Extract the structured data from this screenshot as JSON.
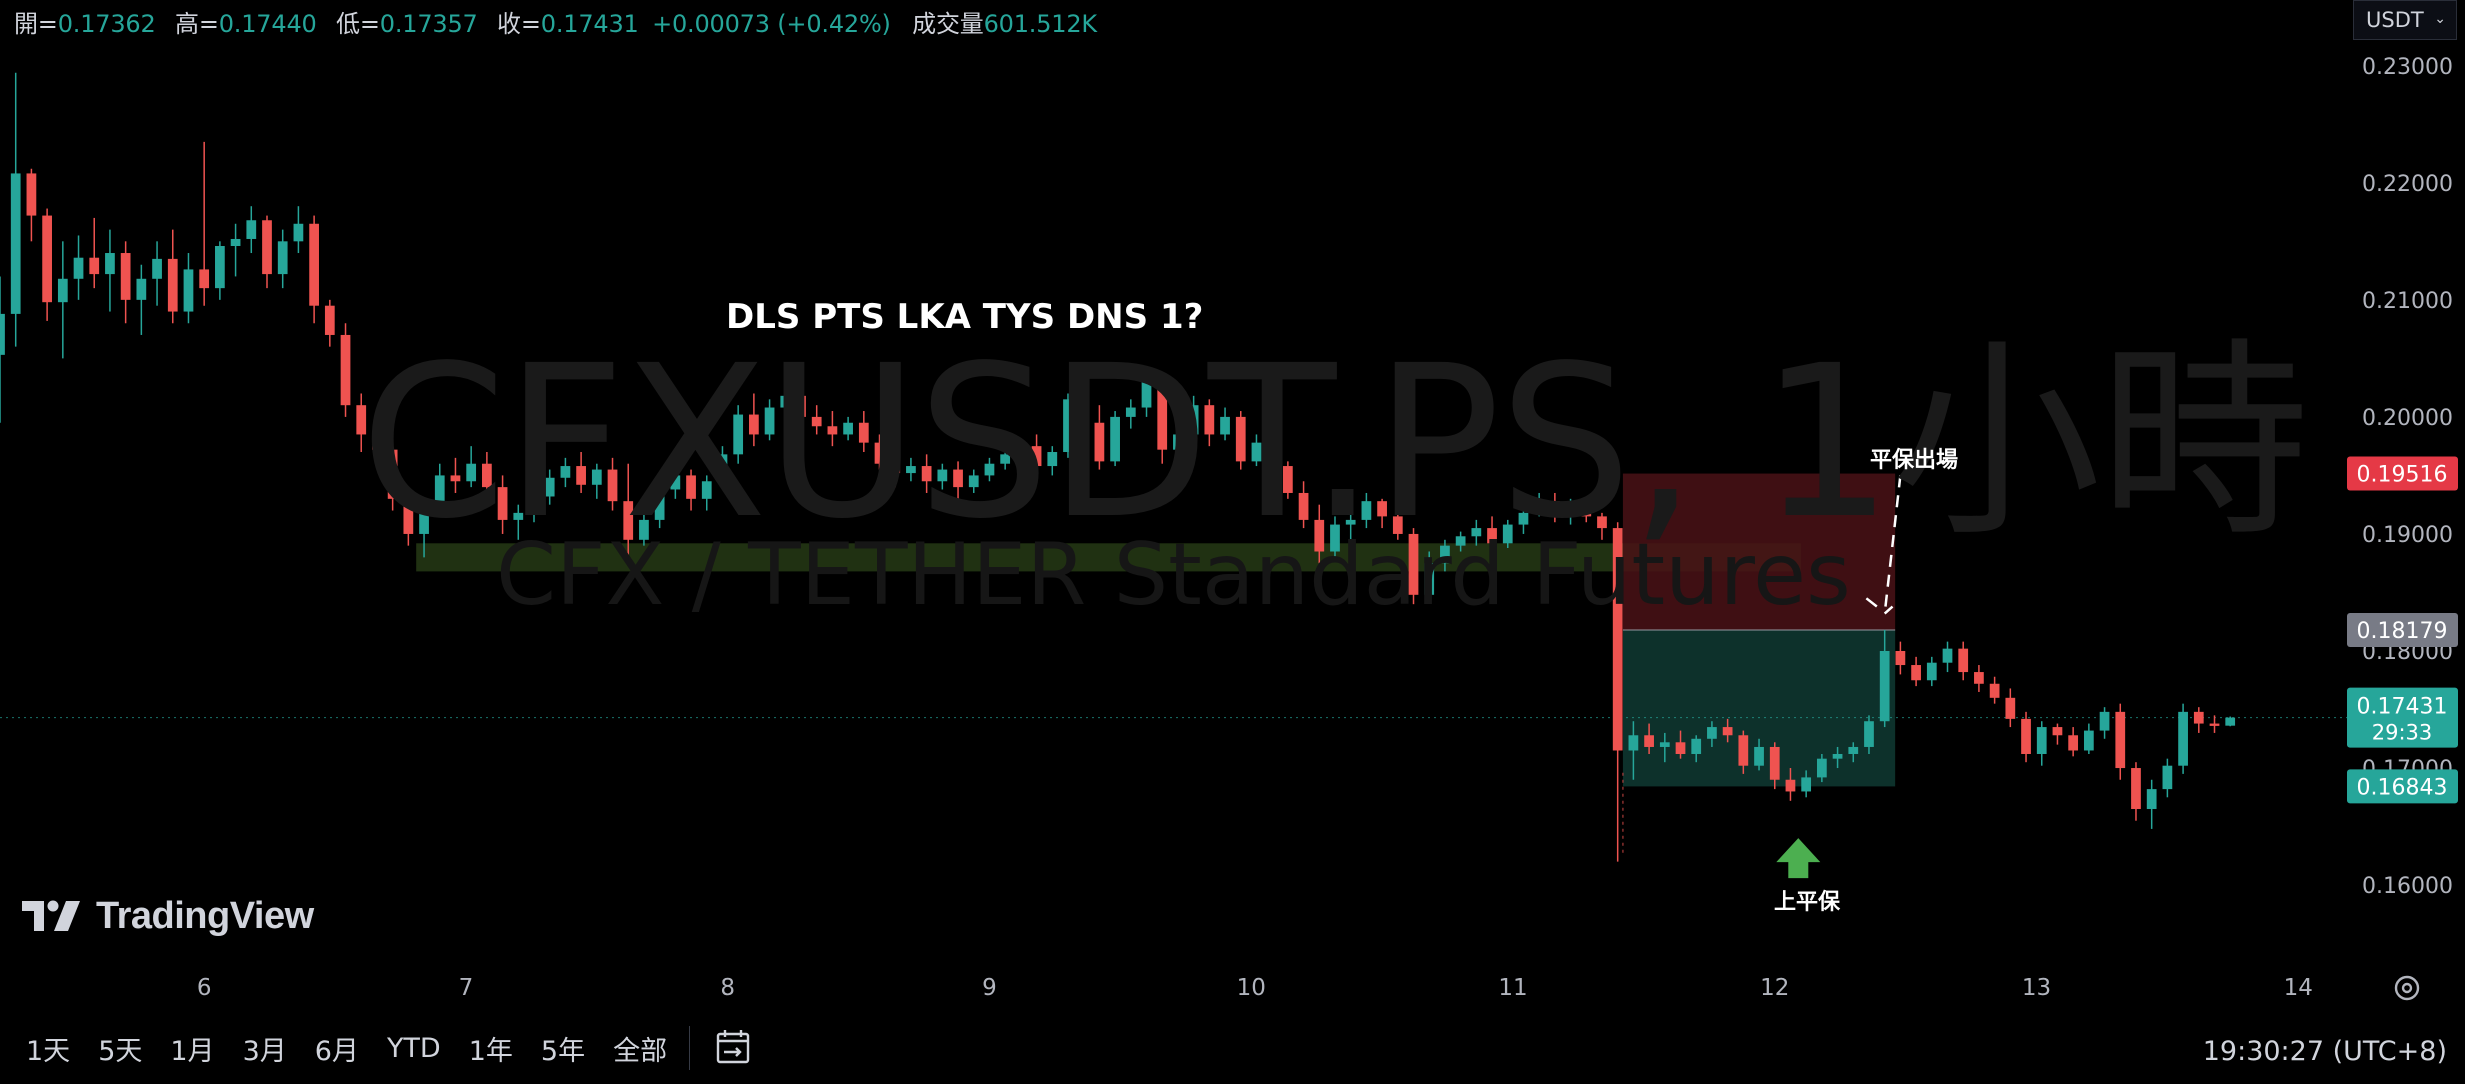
{
  "legend": {
    "open_label": "開=",
    "open": "0.17362",
    "high_label": "高=",
    "high": "0.17440",
    "low_label": "低=",
    "low": "0.17357",
    "close_label": "收=",
    "close": "0.17431",
    "change": "+0.00073 (+0.42%)",
    "volume_label": "成交量",
    "volume": "601.512K"
  },
  "currency": {
    "label": "USDT",
    "icon": "chevron-down-icon"
  },
  "watermark": {
    "symbol": "CFXUSDT.PS, 1小時",
    "description": "CFX / TETHER Standard Futures"
  },
  "annotations": {
    "title": "DLS PTS LKA TYS DNS 1?",
    "exit_label": "平保出場",
    "breakeven_label": "上平保",
    "arrow_icon": "up-arrow-icon"
  },
  "price_badges": {
    "stop": {
      "value": "0.19516",
      "color": "#e53946"
    },
    "entry": {
      "value": "0.18179",
      "color": "#787b86"
    },
    "current": {
      "value": "0.17431",
      "countdown": "29:33",
      "color": "#26a69a"
    },
    "target": {
      "value": "0.16843",
      "color": "#26a69a"
    }
  },
  "timeframes": [
    "1天",
    "5天",
    "1月",
    "3月",
    "6月",
    "YTD",
    "1年",
    "5年",
    "全部"
  ],
  "calendar_icon": "calendar-range-icon",
  "settings_icon": "gear-icon",
  "clock": "19:30:27 (UTC+8)",
  "logo": {
    "text": "TradingView",
    "icon": "tradingview-logo-icon"
  },
  "chart_data": {
    "type": "candlestick",
    "symbol": "CFXUSDT.PS",
    "interval": "1小時",
    "y_ticks": [
      "0.23000",
      "0.22000",
      "0.21000",
      "0.20000",
      "0.19000",
      "0.18000",
      "0.17000",
      "0.16000"
    ],
    "ylim": [
      0.1536,
      0.2322
    ],
    "x_ticks": [
      "6",
      "7",
      "8",
      "9",
      "10",
      "11",
      "12",
      "13",
      "14"
    ],
    "x_tick_values": [
      6,
      7,
      8,
      9,
      10,
      11,
      12,
      13,
      14
    ],
    "xlim": [
      5.22,
      14.19
    ],
    "up_color": "#26a69a",
    "down_color": "#ef5350",
    "support_zone": {
      "x": [
        6.81,
        12.1
      ],
      "y": [
        0.1868,
        0.1892
      ],
      "color": "#3a5a20"
    },
    "position": {
      "start": 11.42,
      "end": 12.46,
      "stop": 0.19516,
      "entry": 0.18179,
      "target": 0.16843,
      "loss_color": "#4a1216",
      "profit_color": "#0f3a32"
    },
    "candles": [
      {
        "t": 5.22,
        "o": 0.2053,
        "h": 0.212,
        "l": 0.1995,
        "c": 0.2088
      },
      {
        "t": 5.28,
        "o": 0.2088,
        "h": 0.2294,
        "l": 0.206,
        "c": 0.2208
      },
      {
        "t": 5.34,
        "o": 0.2208,
        "h": 0.2212,
        "l": 0.215,
        "c": 0.2172
      },
      {
        "t": 5.4,
        "o": 0.2172,
        "h": 0.2178,
        "l": 0.2082,
        "c": 0.2098
      },
      {
        "t": 5.46,
        "o": 0.2098,
        "h": 0.215,
        "l": 0.205,
        "c": 0.2118
      },
      {
        "t": 5.52,
        "o": 0.2118,
        "h": 0.2155,
        "l": 0.21,
        "c": 0.2136
      },
      {
        "t": 5.58,
        "o": 0.2136,
        "h": 0.217,
        "l": 0.211,
        "c": 0.2122
      },
      {
        "t": 5.64,
        "o": 0.2122,
        "h": 0.216,
        "l": 0.209,
        "c": 0.214
      },
      {
        "t": 5.7,
        "o": 0.214,
        "h": 0.215,
        "l": 0.208,
        "c": 0.21
      },
      {
        "t": 5.76,
        "o": 0.21,
        "h": 0.213,
        "l": 0.207,
        "c": 0.2118
      },
      {
        "t": 5.82,
        "o": 0.2118,
        "h": 0.215,
        "l": 0.2095,
        "c": 0.2135
      },
      {
        "t": 5.88,
        "o": 0.2135,
        "h": 0.216,
        "l": 0.208,
        "c": 0.209
      },
      {
        "t": 5.94,
        "o": 0.209,
        "h": 0.214,
        "l": 0.208,
        "c": 0.2126
      },
      {
        "t": 6.0,
        "o": 0.2126,
        "h": 0.2235,
        "l": 0.2095,
        "c": 0.211
      },
      {
        "t": 6.06,
        "o": 0.211,
        "h": 0.215,
        "l": 0.21,
        "c": 0.2146
      },
      {
        "t": 6.12,
        "o": 0.2146,
        "h": 0.2165,
        "l": 0.212,
        "c": 0.2152
      },
      {
        "t": 6.18,
        "o": 0.2152,
        "h": 0.218,
        "l": 0.214,
        "c": 0.2168
      },
      {
        "t": 6.24,
        "o": 0.2168,
        "h": 0.2172,
        "l": 0.211,
        "c": 0.2122
      },
      {
        "t": 6.3,
        "o": 0.2122,
        "h": 0.216,
        "l": 0.211,
        "c": 0.215
      },
      {
        "t": 6.36,
        "o": 0.215,
        "h": 0.218,
        "l": 0.214,
        "c": 0.2165
      },
      {
        "t": 6.42,
        "o": 0.2165,
        "h": 0.2172,
        "l": 0.208,
        "c": 0.2095
      },
      {
        "t": 6.48,
        "o": 0.2095,
        "h": 0.21,
        "l": 0.206,
        "c": 0.207
      },
      {
        "t": 6.54,
        "o": 0.207,
        "h": 0.208,
        "l": 0.2,
        "c": 0.201
      },
      {
        "t": 6.6,
        "o": 0.201,
        "h": 0.202,
        "l": 0.197,
        "c": 0.1985
      },
      {
        "t": 6.66,
        "o": 0.1985,
        "h": 0.1995,
        "l": 0.196,
        "c": 0.1972
      },
      {
        "t": 6.72,
        "o": 0.1972,
        "h": 0.198,
        "l": 0.192,
        "c": 0.193
      },
      {
        "t": 6.78,
        "o": 0.193,
        "h": 0.194,
        "l": 0.189,
        "c": 0.19
      },
      {
        "t": 6.84,
        "o": 0.19,
        "h": 0.193,
        "l": 0.188,
        "c": 0.1925
      },
      {
        "t": 6.9,
        "o": 0.1925,
        "h": 0.196,
        "l": 0.1915,
        "c": 0.195
      },
      {
        "t": 6.96,
        "o": 0.195,
        "h": 0.1965,
        "l": 0.1935,
        "c": 0.1945
      },
      {
        "t": 7.02,
        "o": 0.1945,
        "h": 0.1975,
        "l": 0.194,
        "c": 0.196
      },
      {
        "t": 7.08,
        "o": 0.196,
        "h": 0.197,
        "l": 0.193,
        "c": 0.194
      },
      {
        "t": 7.14,
        "o": 0.194,
        "h": 0.195,
        "l": 0.19,
        "c": 0.1912
      },
      {
        "t": 7.2,
        "o": 0.1912,
        "h": 0.1925,
        "l": 0.1895,
        "c": 0.1918
      },
      {
        "t": 7.26,
        "o": 0.1918,
        "h": 0.194,
        "l": 0.191,
        "c": 0.1932
      },
      {
        "t": 7.32,
        "o": 0.1932,
        "h": 0.1955,
        "l": 0.1925,
        "c": 0.1948
      },
      {
        "t": 7.38,
        "o": 0.1948,
        "h": 0.1965,
        "l": 0.194,
        "c": 0.1958
      },
      {
        "t": 7.44,
        "o": 0.1958,
        "h": 0.197,
        "l": 0.1935,
        "c": 0.1942
      },
      {
        "t": 7.5,
        "o": 0.1942,
        "h": 0.196,
        "l": 0.193,
        "c": 0.1955
      },
      {
        "t": 7.56,
        "o": 0.1955,
        "h": 0.1965,
        "l": 0.192,
        "c": 0.1928
      },
      {
        "t": 7.62,
        "o": 0.1928,
        "h": 0.196,
        "l": 0.188,
        "c": 0.1895
      },
      {
        "t": 7.68,
        "o": 0.1895,
        "h": 0.192,
        "l": 0.189,
        "c": 0.1912
      },
      {
        "t": 7.74,
        "o": 0.1912,
        "h": 0.1945,
        "l": 0.1905,
        "c": 0.1938
      },
      {
        "t": 7.8,
        "o": 0.1938,
        "h": 0.196,
        "l": 0.193,
        "c": 0.195
      },
      {
        "t": 7.86,
        "o": 0.195,
        "h": 0.1955,
        "l": 0.192,
        "c": 0.193
      },
      {
        "t": 7.92,
        "o": 0.193,
        "h": 0.195,
        "l": 0.192,
        "c": 0.1945
      },
      {
        "t": 7.98,
        "o": 0.1945,
        "h": 0.1975,
        "l": 0.194,
        "c": 0.1968
      },
      {
        "t": 8.04,
        "o": 0.1968,
        "h": 0.201,
        "l": 0.196,
        "c": 0.2002
      },
      {
        "t": 8.1,
        "o": 0.2002,
        "h": 0.202,
        "l": 0.1975,
        "c": 0.1985
      },
      {
        "t": 8.16,
        "o": 0.1985,
        "h": 0.2015,
        "l": 0.198,
        "c": 0.2008
      },
      {
        "t": 8.22,
        "o": 0.2008,
        "h": 0.2025,
        "l": 0.2,
        "c": 0.2018
      },
      {
        "t": 8.28,
        "o": 0.2018,
        "h": 0.2025,
        "l": 0.1995,
        "c": 0.2
      },
      {
        "t": 8.34,
        "o": 0.2,
        "h": 0.201,
        "l": 0.1985,
        "c": 0.1992
      },
      {
        "t": 8.4,
        "o": 0.1992,
        "h": 0.2005,
        "l": 0.1975,
        "c": 0.1985
      },
      {
        "t": 8.46,
        "o": 0.1985,
        "h": 0.2,
        "l": 0.198,
        "c": 0.1995
      },
      {
        "t": 8.52,
        "o": 0.1995,
        "h": 0.2005,
        "l": 0.197,
        "c": 0.1978
      },
      {
        "t": 8.58,
        "o": 0.1978,
        "h": 0.1985,
        "l": 0.1955,
        "c": 0.196
      },
      {
        "t": 8.64,
        "o": 0.196,
        "h": 0.1975,
        "l": 0.194,
        "c": 0.1952
      },
      {
        "t": 8.7,
        "o": 0.1952,
        "h": 0.1965,
        "l": 0.1945,
        "c": 0.1958
      },
      {
        "t": 8.76,
        "o": 0.1958,
        "h": 0.1968,
        "l": 0.1935,
        "c": 0.1945
      },
      {
        "t": 8.82,
        "o": 0.1945,
        "h": 0.196,
        "l": 0.1938,
        "c": 0.1955
      },
      {
        "t": 8.88,
        "o": 0.1955,
        "h": 0.1962,
        "l": 0.193,
        "c": 0.194
      },
      {
        "t": 8.94,
        "o": 0.194,
        "h": 0.1955,
        "l": 0.1935,
        "c": 0.195
      },
      {
        "t": 9.0,
        "o": 0.195,
        "h": 0.1965,
        "l": 0.1945,
        "c": 0.196
      },
      {
        "t": 9.06,
        "o": 0.196,
        "h": 0.1975,
        "l": 0.1955,
        "c": 0.1968
      },
      {
        "t": 9.12,
        "o": 0.1968,
        "h": 0.198,
        "l": 0.196,
        "c": 0.1975
      },
      {
        "t": 9.18,
        "o": 0.1975,
        "h": 0.1985,
        "l": 0.195,
        "c": 0.1958
      },
      {
        "t": 9.24,
        "o": 0.1958,
        "h": 0.1975,
        "l": 0.195,
        "c": 0.197
      },
      {
        "t": 9.3,
        "o": 0.197,
        "h": 0.202,
        "l": 0.1965,
        "c": 0.2015
      },
      {
        "t": 9.36,
        "o": 0.2015,
        "h": 0.202,
        "l": 0.1985,
        "c": 0.1995
      },
      {
        "t": 9.42,
        "o": 0.1995,
        "h": 0.201,
        "l": 0.1955,
        "c": 0.1962
      },
      {
        "t": 9.48,
        "o": 0.1962,
        "h": 0.2005,
        "l": 0.1958,
        "c": 0.2
      },
      {
        "t": 9.54,
        "o": 0.2,
        "h": 0.2015,
        "l": 0.199,
        "c": 0.2008
      },
      {
        "t": 9.6,
        "o": 0.2008,
        "h": 0.204,
        "l": 0.2,
        "c": 0.203
      },
      {
        "t": 9.66,
        "o": 0.203,
        "h": 0.2035,
        "l": 0.196,
        "c": 0.1972
      },
      {
        "t": 9.72,
        "o": 0.1972,
        "h": 0.199,
        "l": 0.1965,
        "c": 0.1985
      },
      {
        "t": 9.78,
        "o": 0.1985,
        "h": 0.2018,
        "l": 0.198,
        "c": 0.201
      },
      {
        "t": 9.84,
        "o": 0.201,
        "h": 0.2015,
        "l": 0.1975,
        "c": 0.1985
      },
      {
        "t": 9.9,
        "o": 0.1985,
        "h": 0.2008,
        "l": 0.198,
        "c": 0.2
      },
      {
        "t": 9.96,
        "o": 0.2,
        "h": 0.2005,
        "l": 0.1955,
        "c": 0.1962
      },
      {
        "t": 10.02,
        "o": 0.1962,
        "h": 0.1985,
        "l": 0.1958,
        "c": 0.1978
      },
      {
        "t": 10.08,
        "o": 0.1978,
        "h": 0.1985,
        "l": 0.195,
        "c": 0.1958
      },
      {
        "t": 10.14,
        "o": 0.1958,
        "h": 0.1962,
        "l": 0.193,
        "c": 0.1935
      },
      {
        "t": 10.2,
        "o": 0.1935,
        "h": 0.1945,
        "l": 0.1905,
        "c": 0.1912
      },
      {
        "t": 10.26,
        "o": 0.1912,
        "h": 0.1925,
        "l": 0.1875,
        "c": 0.1885
      },
      {
        "t": 10.32,
        "o": 0.1885,
        "h": 0.1915,
        "l": 0.188,
        "c": 0.1908
      },
      {
        "t": 10.38,
        "o": 0.1908,
        "h": 0.192,
        "l": 0.1895,
        "c": 0.1912
      },
      {
        "t": 10.44,
        "o": 0.1912,
        "h": 0.1935,
        "l": 0.1905,
        "c": 0.1928
      },
      {
        "t": 10.5,
        "o": 0.1928,
        "h": 0.193,
        "l": 0.1905,
        "c": 0.1915
      },
      {
        "t": 10.56,
        "o": 0.1915,
        "h": 0.192,
        "l": 0.1895,
        "c": 0.19
      },
      {
        "t": 10.62,
        "o": 0.19,
        "h": 0.1905,
        "l": 0.184,
        "c": 0.1848
      },
      {
        "t": 10.68,
        "o": 0.1848,
        "h": 0.1885,
        "l": 0.1842,
        "c": 0.1875
      },
      {
        "t": 10.74,
        "o": 0.1875,
        "h": 0.1895,
        "l": 0.1868,
        "c": 0.189
      },
      {
        "t": 10.8,
        "o": 0.189,
        "h": 0.1902,
        "l": 0.1885,
        "c": 0.1898
      },
      {
        "t": 10.86,
        "o": 0.1898,
        "h": 0.1912,
        "l": 0.189,
        "c": 0.1905
      },
      {
        "t": 10.92,
        "o": 0.1905,
        "h": 0.1915,
        "l": 0.1885,
        "c": 0.1892
      },
      {
        "t": 10.98,
        "o": 0.1892,
        "h": 0.1912,
        "l": 0.1888,
        "c": 0.1908
      },
      {
        "t": 11.04,
        "o": 0.1908,
        "h": 0.1925,
        "l": 0.19,
        "c": 0.1918
      },
      {
        "t": 11.1,
        "o": 0.1918,
        "h": 0.1935,
        "l": 0.1915,
        "c": 0.1928
      },
      {
        "t": 11.16,
        "o": 0.1928,
        "h": 0.1935,
        "l": 0.191,
        "c": 0.1915
      },
      {
        "t": 11.22,
        "o": 0.1915,
        "h": 0.193,
        "l": 0.1908,
        "c": 0.1922
      },
      {
        "t": 11.28,
        "o": 0.1922,
        "h": 0.1928,
        "l": 0.191,
        "c": 0.1915
      },
      {
        "t": 11.34,
        "o": 0.1915,
        "h": 0.1918,
        "l": 0.1895,
        "c": 0.1905
      },
      {
        "t": 11.4,
        "o": 0.1905,
        "h": 0.191,
        "l": 0.162,
        "c": 0.1715
      },
      {
        "t": 11.46,
        "o": 0.1715,
        "h": 0.174,
        "l": 0.169,
        "c": 0.1728
      },
      {
        "t": 11.52,
        "o": 0.1728,
        "h": 0.1738,
        "l": 0.1712,
        "c": 0.1718
      },
      {
        "t": 11.58,
        "o": 0.1718,
        "h": 0.173,
        "l": 0.1705,
        "c": 0.1722
      },
      {
        "t": 11.64,
        "o": 0.1722,
        "h": 0.1732,
        "l": 0.1708,
        "c": 0.1712
      },
      {
        "t": 11.7,
        "o": 0.1712,
        "h": 0.1728,
        "l": 0.1705,
        "c": 0.1725
      },
      {
        "t": 11.76,
        "o": 0.1725,
        "h": 0.174,
        "l": 0.1718,
        "c": 0.1735
      },
      {
        "t": 11.82,
        "o": 0.1735,
        "h": 0.1742,
        "l": 0.1722,
        "c": 0.1728
      },
      {
        "t": 11.88,
        "o": 0.1728,
        "h": 0.1732,
        "l": 0.1695,
        "c": 0.1702
      },
      {
        "t": 11.94,
        "o": 0.1702,
        "h": 0.1725,
        "l": 0.1698,
        "c": 0.1718
      },
      {
        "t": 12.0,
        "o": 0.1718,
        "h": 0.1722,
        "l": 0.1682,
        "c": 0.169
      },
      {
        "t": 12.06,
        "o": 0.169,
        "h": 0.17,
        "l": 0.1672,
        "c": 0.168
      },
      {
        "t": 12.12,
        "o": 0.168,
        "h": 0.1698,
        "l": 0.1675,
        "c": 0.1692
      },
      {
        "t": 12.18,
        "o": 0.1692,
        "h": 0.1712,
        "l": 0.1688,
        "c": 0.1708
      },
      {
        "t": 12.24,
        "o": 0.1708,
        "h": 0.1718,
        "l": 0.17,
        "c": 0.1712
      },
      {
        "t": 12.3,
        "o": 0.1712,
        "h": 0.1722,
        "l": 0.1705,
        "c": 0.1718
      },
      {
        "t": 12.36,
        "o": 0.1718,
        "h": 0.1745,
        "l": 0.1712,
        "c": 0.174
      },
      {
        "t": 12.42,
        "o": 0.174,
        "h": 0.1818,
        "l": 0.1735,
        "c": 0.18
      },
      {
        "t": 12.48,
        "o": 0.18,
        "h": 0.1808,
        "l": 0.178,
        "c": 0.1788
      },
      {
        "t": 12.54,
        "o": 0.1788,
        "h": 0.1795,
        "l": 0.177,
        "c": 0.1775
      },
      {
        "t": 12.6,
        "o": 0.1775,
        "h": 0.1795,
        "l": 0.177,
        "c": 0.179
      },
      {
        "t": 12.66,
        "o": 0.179,
        "h": 0.1808,
        "l": 0.1782,
        "c": 0.1802
      },
      {
        "t": 12.72,
        "o": 0.1802,
        "h": 0.1808,
        "l": 0.1775,
        "c": 0.1782
      },
      {
        "t": 12.78,
        "o": 0.1782,
        "h": 0.1788,
        "l": 0.1765,
        "c": 0.1772
      },
      {
        "t": 12.84,
        "o": 0.1772,
        "h": 0.1778,
        "l": 0.1755,
        "c": 0.176
      },
      {
        "t": 12.9,
        "o": 0.176,
        "h": 0.1768,
        "l": 0.1735,
        "c": 0.1742
      },
      {
        "t": 12.96,
        "o": 0.1742,
        "h": 0.1748,
        "l": 0.1705,
        "c": 0.1712
      },
      {
        "t": 13.02,
        "o": 0.1712,
        "h": 0.174,
        "l": 0.1702,
        "c": 0.1735
      },
      {
        "t": 13.08,
        "o": 0.1735,
        "h": 0.1738,
        "l": 0.172,
        "c": 0.1728
      },
      {
        "t": 13.14,
        "o": 0.1728,
        "h": 0.1735,
        "l": 0.171,
        "c": 0.1715
      },
      {
        "t": 13.2,
        "o": 0.1715,
        "h": 0.1738,
        "l": 0.1712,
        "c": 0.1732
      },
      {
        "t": 13.26,
        "o": 0.1732,
        "h": 0.1752,
        "l": 0.1725,
        "c": 0.1748
      },
      {
        "t": 13.32,
        "o": 0.1748,
        "h": 0.1755,
        "l": 0.169,
        "c": 0.17
      },
      {
        "t": 13.38,
        "o": 0.17,
        "h": 0.1705,
        "l": 0.1655,
        "c": 0.1665
      },
      {
        "t": 13.44,
        "o": 0.1665,
        "h": 0.169,
        "l": 0.1648,
        "c": 0.1682
      },
      {
        "t": 13.5,
        "o": 0.1682,
        "h": 0.1708,
        "l": 0.1675,
        "c": 0.1702
      },
      {
        "t": 13.56,
        "o": 0.1702,
        "h": 0.1755,
        "l": 0.1695,
        "c": 0.1748
      },
      {
        "t": 13.62,
        "o": 0.1748,
        "h": 0.1752,
        "l": 0.173,
        "c": 0.1738
      },
      {
        "t": 13.68,
        "o": 0.1738,
        "h": 0.1745,
        "l": 0.173,
        "c": 0.1736
      },
      {
        "t": 13.74,
        "o": 0.17362,
        "h": 0.1744,
        "l": 0.17357,
        "c": 0.17431
      }
    ]
  }
}
